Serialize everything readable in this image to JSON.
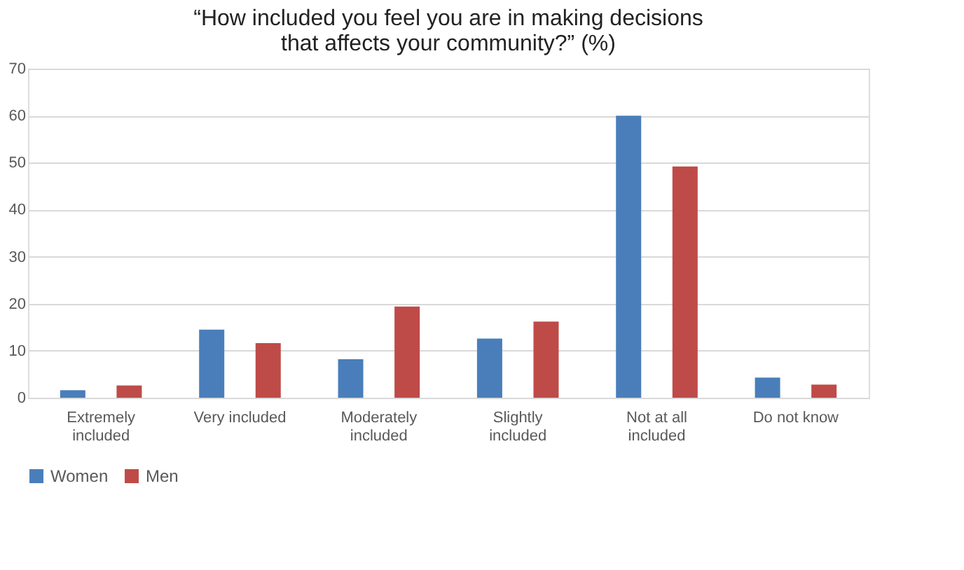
{
  "chart_data": {
    "type": "bar",
    "title": "“How included you feel you are in making decisions that affects your community?” (%)",
    "categories": [
      "Extremely included",
      "Very included",
      "Moderately included",
      "Slightly included",
      "Not at all included",
      "Do not know"
    ],
    "series": [
      {
        "name": "Women",
        "color": "#4a7ebb",
        "values": [
          1.6,
          14.5,
          8.2,
          12.6,
          60,
          4.3
        ]
      },
      {
        "name": "Men",
        "color": "#be4b48",
        "values": [
          2.6,
          11.6,
          19.4,
          16.2,
          49.2,
          2.8
        ]
      }
    ],
    "ylim": [
      0,
      70
    ],
    "yticks": [
      0,
      10,
      20,
      30,
      40,
      50,
      60,
      70
    ],
    "grid": "y",
    "legend": "bottom"
  }
}
